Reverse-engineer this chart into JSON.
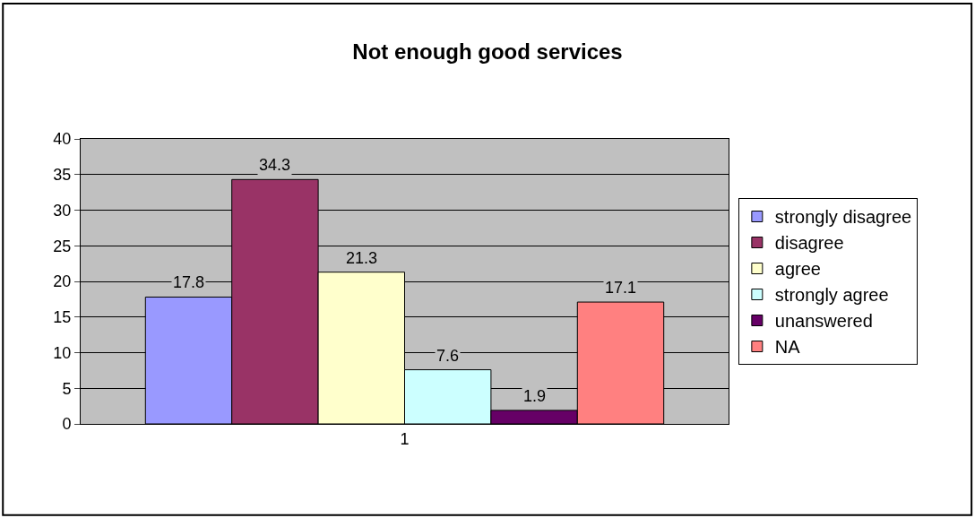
{
  "chart_data": {
    "type": "bar",
    "title": "Not enough good services",
    "categories": [
      "1"
    ],
    "series": [
      {
        "name": "strongly disagree",
        "color": "#9999ff",
        "values": [
          17.8
        ]
      },
      {
        "name": "disagree",
        "color": "#993366",
        "values": [
          34.3
        ]
      },
      {
        "name": "agree",
        "color": "#ffffcc",
        "values": [
          21.3
        ]
      },
      {
        "name": "strongly agree",
        "color": "#ccffff",
        "values": [
          7.6
        ]
      },
      {
        "name": "unanswered",
        "color": "#660066",
        "values": [
          1.9
        ]
      },
      {
        "name": "NA",
        "color": "#ff8080",
        "values": [
          17.1
        ]
      }
    ],
    "ylim": [
      0,
      40
    ],
    "yticks": [
      0,
      5,
      10,
      15,
      20,
      25,
      30,
      35,
      40
    ],
    "grid": "y",
    "legend": "right",
    "data_labels": true
  }
}
